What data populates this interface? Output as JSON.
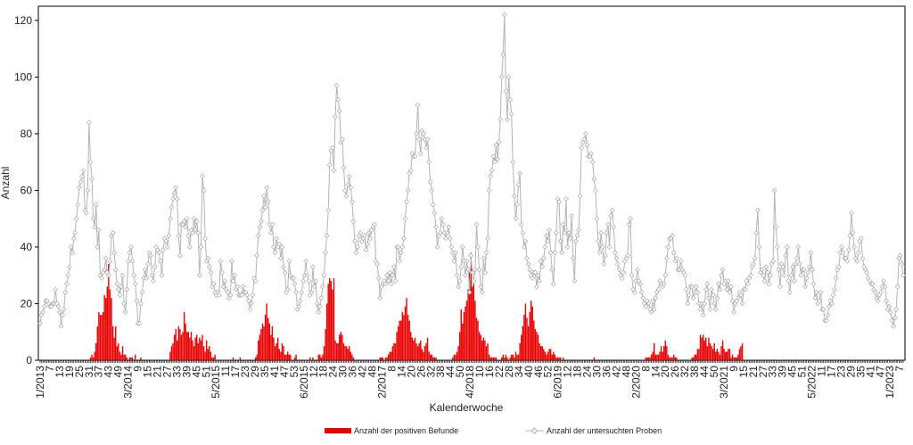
{
  "chart_data": {
    "type": "bar",
    "xlabel": "Kalenderwoche",
    "ylabel": "Anzahl",
    "ylim": [
      0,
      125
    ],
    "yticks": [
      0,
      20,
      40,
      60,
      80,
      100,
      120
    ],
    "grid": false,
    "legend_position": "bottom",
    "colors": {
      "bars": "#e80000",
      "line": "#b4b4b4",
      "markers_fill": "#ffffff",
      "markers_stroke": "#9a9a9a"
    },
    "x_tick_labels": [
      "1/2013",
      "7",
      "13",
      "19",
      "25",
      "31",
      "37",
      "43",
      "49",
      "3/2014",
      "9",
      "15",
      "21",
      "27",
      "33",
      "39",
      "45",
      "51",
      "5/2015",
      "11",
      "17",
      "23",
      "29",
      "35",
      "41",
      "47",
      "53",
      "6/2015",
      "12",
      "18",
      "24",
      "30",
      "36",
      "42",
      "48",
      "2/2017",
      "8",
      "14",
      "20",
      "26",
      "32",
      "38",
      "44",
      "50",
      "4/2018",
      "10",
      "16",
      "22",
      "28",
      "34",
      "40",
      "46",
      "52",
      "6/2019",
      "12",
      "18",
      "24",
      "30",
      "36",
      "42",
      "48",
      "2/2020",
      "8",
      "14",
      "20",
      "26",
      "32",
      "38",
      "44",
      "50",
      "3/2021",
      "9",
      "15",
      "21",
      "27",
      "33",
      "39",
      "45",
      "51",
      "5/2022",
      "11",
      "17",
      "23",
      "29",
      "35",
      "41",
      "47",
      "1/2023",
      "7"
    ],
    "series": [
      {
        "name": "Anzahl der positiven Befunde",
        "type": "bar",
        "values": [
          0,
          0,
          0,
          0,
          0,
          0,
          0,
          0,
          0,
          0,
          0,
          0,
          0,
          0,
          0,
          0,
          0,
          0,
          0,
          0,
          0,
          0,
          0,
          0,
          0,
          0,
          0,
          0,
          0,
          0,
          0,
          0,
          0,
          0,
          0,
          0,
          1,
          2,
          1,
          3,
          6,
          12,
          17,
          16,
          16,
          17,
          23,
          22,
          26,
          34,
          25,
          22,
          12,
          8,
          12,
          5,
          6,
          3,
          2,
          5,
          2,
          2,
          1,
          0,
          1,
          1,
          1,
          0,
          2,
          0,
          0,
          0,
          1,
          0,
          0,
          0,
          0,
          0,
          0,
          0,
          0,
          0,
          0,
          0,
          0,
          0,
          0,
          0,
          0,
          0,
          0,
          0,
          0,
          3,
          5,
          6,
          9,
          11,
          7,
          12,
          11,
          9,
          10,
          17,
          13,
          10,
          10,
          8,
          10,
          7,
          5,
          8,
          9,
          6,
          8,
          7,
          9,
          5,
          3,
          7,
          4,
          5,
          3,
          1,
          1,
          2,
          0,
          0,
          0,
          0,
          0,
          0,
          0,
          0,
          0,
          0,
          0,
          0,
          1,
          0,
          0,
          0,
          0,
          1,
          0,
          0,
          0,
          0,
          0,
          0,
          0,
          0,
          0,
          0,
          1,
          2,
          7,
          9,
          11,
          13,
          12,
          16,
          20,
          15,
          13,
          9,
          12,
          8,
          5,
          6,
          8,
          4,
          3,
          6,
          5,
          2,
          2,
          3,
          2,
          2,
          0,
          0,
          1,
          2,
          0,
          0,
          0,
          0,
          0,
          0,
          0,
          0,
          0,
          1,
          0,
          1,
          0,
          0,
          0,
          2,
          2,
          1,
          2,
          5,
          11,
          20,
          27,
          29,
          28,
          25,
          29,
          7,
          6,
          6,
          9,
          10,
          9,
          6,
          5,
          5,
          4,
          5,
          3,
          2,
          1,
          0,
          0,
          0,
          0,
          0,
          0,
          0,
          0,
          0,
          0,
          0,
          0,
          0,
          0,
          0,
          0,
          0,
          0,
          1,
          1,
          1,
          0,
          1,
          1,
          2,
          3,
          3,
          5,
          6,
          6,
          10,
          12,
          14,
          14,
          17,
          16,
          19,
          22,
          16,
          14,
          10,
          8,
          7,
          8,
          6,
          5,
          6,
          7,
          4,
          3,
          5,
          6,
          8,
          3,
          2,
          2,
          1,
          1,
          1,
          0,
          0,
          0,
          0,
          0,
          0,
          0,
          0,
          0,
          0,
          0,
          1,
          2,
          2,
          3,
          5,
          10,
          18,
          13,
          17,
          19,
          21,
          25,
          31,
          38,
          26,
          27,
          21,
          15,
          14,
          10,
          9,
          7,
          8,
          7,
          5,
          6,
          2,
          1,
          1,
          1,
          1,
          1,
          0,
          0,
          0,
          1,
          2,
          1,
          2,
          1,
          0,
          1,
          2,
          2,
          1,
          3,
          2,
          2,
          6,
          9,
          12,
          16,
          20,
          15,
          12,
          17,
          21,
          19,
          14,
          11,
          10,
          9,
          6,
          5,
          5,
          4,
          3,
          2,
          3,
          4,
          4,
          2,
          3,
          2,
          1,
          1,
          1,
          1,
          0,
          1,
          0,
          0,
          0,
          0,
          0,
          0,
          0,
          0,
          0,
          0,
          0,
          0,
          0,
          0,
          0,
          0,
          0,
          0,
          0,
          0,
          0,
          1,
          0,
          0,
          0,
          0,
          0,
          0,
          0,
          0,
          0,
          0,
          0,
          0,
          0,
          0,
          0,
          0,
          0,
          0,
          0,
          0,
          0,
          0,
          0,
          0,
          0,
          0,
          0,
          0,
          0,
          0,
          0,
          0,
          0,
          0,
          0,
          0,
          1,
          1,
          1,
          1,
          2,
          3,
          6,
          2,
          2,
          2,
          3,
          5,
          3,
          5,
          7,
          5,
          2,
          1,
          1,
          1,
          2,
          1,
          1,
          0,
          0,
          0,
          0,
          0,
          0,
          0,
          0,
          0,
          0,
          1,
          1,
          2,
          2,
          4,
          4,
          9,
          8,
          9,
          7,
          8,
          5,
          8,
          6,
          5,
          4,
          6,
          3,
          4,
          3,
          2,
          5,
          7,
          4,
          3,
          3,
          4,
          4,
          1,
          2,
          1,
          1,
          1,
          2,
          4,
          5,
          6
        ]
      },
      {
        "name": "Anzahl der untersuchten Proben",
        "type": "line",
        "values": [
          13,
          16,
          17,
          19,
          21,
          21,
          20,
          19,
          19,
          20,
          20,
          25,
          20,
          19,
          17,
          12,
          16,
          18,
          24,
          27,
          30,
          33,
          40,
          38,
          43,
          45,
          50,
          55,
          61,
          63,
          65,
          67,
          53,
          52,
          60,
          84,
          70,
          64,
          50,
          47,
          55,
          40,
          46,
          30,
          29,
          31,
          32,
          36,
          31,
          30,
          35,
          44,
          45,
          38,
          32,
          27,
          25,
          23,
          26,
          30,
          20,
          17,
          25,
          35,
          38,
          40,
          35,
          30,
          27,
          21,
          13,
          13,
          20,
          24,
          29,
          32,
          29,
          34,
          38,
          37,
          30,
          28,
          33,
          40,
          39,
          38,
          35,
          30,
          39,
          43,
          42,
          40,
          44,
          50,
          54,
          57,
          59,
          61,
          57,
          44,
          37,
          48,
          48,
          49,
          47,
          50,
          44,
          40,
          46,
          45,
          50,
          46,
          49,
          45,
          30,
          40,
          65,
          60,
          43,
          35,
          36,
          33,
          31,
          26,
          27,
          24,
          23,
          24,
          23,
          35,
          31,
          26,
          28,
          25,
          24,
          22,
          23,
          35,
          28,
          30,
          25,
          26,
          23,
          23,
          23,
          26,
          24,
          24,
          23,
          21,
          18,
          20,
          23,
          29,
          28,
          37,
          44,
          47,
          49,
          53,
          58,
          54,
          61,
          56,
          48,
          45,
          48,
          40,
          38,
          43,
          40,
          41,
          36,
          40,
          33,
          31,
          24,
          25,
          35,
          30,
          29,
          29,
          27,
          24,
          18,
          19,
          21,
          24,
          28,
          30,
          35,
          30,
          28,
          23,
          24,
          33,
          26,
          28,
          20,
          17,
          19,
          22,
          26,
          30,
          38,
          44,
          53,
          69,
          74,
          75,
          67,
          86,
          97,
          92,
          88,
          77,
          78,
          68,
          60,
          58,
          62,
          65,
          61,
          56,
          49,
          42,
          38,
          40,
          44,
          45,
          42,
          43,
          44,
          39,
          41,
          45,
          43,
          46,
          47,
          48,
          35,
          34,
          29,
          22,
          26,
          27,
          28,
          27,
          30,
          28,
          31,
          27,
          30,
          33,
          28,
          40,
          40,
          35,
          38,
          40,
          43,
          50,
          56,
          60,
          66,
          67,
          73,
          72,
          72,
          80,
          90,
          78,
          73,
          81,
          80,
          78,
          75,
          78,
          70,
          63,
          60,
          55,
          52,
          47,
          40,
          44,
          45,
          50,
          48,
          45,
          43,
          45,
          47,
          43,
          40,
          38,
          35,
          38,
          30,
          26,
          28,
          33,
          40,
          35,
          30,
          35,
          32,
          24,
          37,
          31,
          28,
          32,
          48,
          40,
          32,
          26,
          24,
          36,
          31,
          38,
          43,
          60,
          65,
          67,
          72,
          70,
          76,
          71,
          77,
          85,
          100,
          108,
          122,
          95,
          85,
          100,
          92,
          87,
          70,
          58,
          50,
          55,
          62,
          66,
          48,
          45,
          40,
          42,
          36,
          34,
          32,
          30,
          29,
          31,
          31,
          26,
          30,
          28,
          35,
          33,
          36,
          40,
          44,
          42,
          46,
          38,
          32,
          27,
          38,
          45,
          57,
          56,
          42,
          38,
          48,
          45,
          57,
          40,
          45,
          43,
          51,
          36,
          28,
          42,
          44,
          46,
          58,
          75,
          77,
          78,
          80,
          76,
          72,
          72,
          73,
          70,
          64,
          60,
          50,
          42,
          38,
          45,
          40,
          34,
          37,
          45,
          48,
          40,
          51,
          53,
          47,
          38,
          36,
          34,
          32,
          30,
          29,
          31,
          35,
          36,
          37,
          48,
          50,
          30,
          25,
          24,
          28,
          32,
          28,
          27,
          24,
          22,
          20,
          19,
          21,
          20,
          18,
          17,
          21,
          18,
          22,
          24,
          25,
          28,
          27,
          26,
          27,
          30,
          36,
          40,
          43,
          43,
          44,
          38,
          35,
          36,
          32,
          32,
          35,
          32,
          31,
          30,
          25,
          20,
          23,
          26,
          26,
          22,
          24,
          26,
          24,
          20,
          18,
          20,
          16,
          20,
          25,
          27,
          22,
          18,
          25,
          23,
          20,
          18,
          22,
          27,
          25,
          30,
          32,
          27,
          28,
          25,
          28,
          24,
          26,
          21,
          17,
          20,
          21,
          22,
          24,
          23,
          20,
          25,
          25,
          28,
          27,
          29,
          30,
          33,
          34,
          36,
          45,
          53,
          40,
          31,
          32,
          30,
          28,
          33,
          31,
          27,
          30,
          34,
          35,
          60,
          47,
          40,
          32,
          26,
          34,
          33,
          30,
          37,
          40,
          28,
          24,
          30,
          33,
          28,
          34,
          36,
          40,
          34,
          30,
          32,
          32,
          26,
          29,
          31,
          33,
          38,
          32,
          27,
          22,
          24,
          20,
          21,
          24,
          18,
          18,
          14,
          14,
          16,
          19,
          21,
          20,
          23,
          25,
          29,
          32,
          33,
          38,
          40,
          38,
          36,
          36,
          35,
          39,
          44,
          52,
          45,
          40,
          36,
          35,
          38,
          42,
          43,
          36,
          33,
          32,
          31,
          29,
          28,
          27,
          27,
          25,
          24,
          22,
          21,
          23,
          24,
          26,
          28,
          26,
          21,
          18,
          19,
          17,
          14,
          12,
          15,
          18,
          26,
          36,
          37,
          34,
          30
        ]
      }
    ]
  }
}
